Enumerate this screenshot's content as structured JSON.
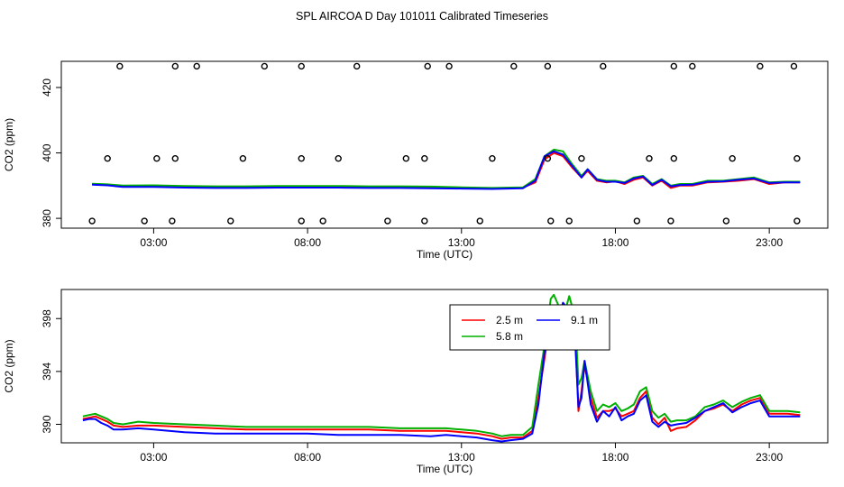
{
  "title": "SPL AIRCOA D  Day 101011  Calibrated Timeseries",
  "chart_data": [
    {
      "type": "line",
      "name": "top-panel",
      "xlabel": "Time (UTC)",
      "ylabel": "CO2 (ppm)",
      "xlim": [
        0,
        24.9
      ],
      "ylim": [
        377,
        428
      ],
      "xticks": [
        3,
        8,
        13,
        18,
        23
      ],
      "xtick_labels": [
        "03:00",
        "08:00",
        "13:00",
        "18:00",
        "23:00"
      ],
      "yticks": [
        380,
        400,
        420
      ],
      "ytick_labels": [
        "380",
        "400",
        "420"
      ],
      "x": [
        1.0,
        1.5,
        2.0,
        3.0,
        4.0,
        5.0,
        6.0,
        7.0,
        8.0,
        9.0,
        10.0,
        11.0,
        12.0,
        13.0,
        14.0,
        15.0,
        15.4,
        15.7,
        16.0,
        16.3,
        16.6,
        16.9,
        17.1,
        17.4,
        17.7,
        18.0,
        18.3,
        18.6,
        18.9,
        19.2,
        19.5,
        19.8,
        20.1,
        20.5,
        21.0,
        21.5,
        22.0,
        22.5,
        23.0,
        23.5,
        24.0
      ],
      "series": [
        {
          "name": "2.5 m",
          "color": "#ff0000",
          "values": [
            390.5,
            390.2,
            389.8,
            389.8,
            389.6,
            389.5,
            389.5,
            389.6,
            389.6,
            389.6,
            389.5,
            389.5,
            389.4,
            389.3,
            389.2,
            389.4,
            391,
            398,
            400,
            399,
            395.5,
            392.5,
            394.5,
            391.5,
            391,
            391.3,
            390.5,
            391.8,
            392.5,
            390,
            391.5,
            389.3,
            390,
            390,
            391,
            391.2,
            391.5,
            392,
            390.5,
            391,
            391
          ]
        },
        {
          "name": "5.8 m",
          "color": "#00b000",
          "values": [
            390.6,
            390.4,
            390.0,
            390.1,
            389.9,
            389.8,
            389.8,
            389.9,
            389.9,
            389.9,
            389.8,
            389.8,
            389.7,
            389.5,
            389.3,
            389.5,
            392,
            399,
            401,
            400.5,
            396.5,
            393,
            395,
            392,
            391.5,
            391.5,
            391,
            392.5,
            393,
            390.5,
            392,
            390,
            390.5,
            390.5,
            391.5,
            391.5,
            392,
            392.5,
            391,
            391.2,
            391.2
          ]
        },
        {
          "name": "9.1 m",
          "color": "#0000ff",
          "values": [
            390.3,
            390.1,
            389.6,
            389.6,
            389.4,
            389.3,
            389.3,
            389.4,
            389.4,
            389.4,
            389.3,
            389.3,
            389.2,
            389.1,
            389.0,
            389.2,
            391.5,
            399,
            400.5,
            399.5,
            396,
            392.5,
            395,
            391.8,
            391.2,
            391.2,
            390.8,
            392.2,
            392.8,
            390.2,
            391.8,
            389.8,
            390.2,
            390.3,
            391.2,
            391.3,
            391.8,
            392.2,
            390.8,
            391,
            391
          ]
        }
      ],
      "markers": {
        "shape": "open-circle",
        "rows": [
          {
            "y": 426.5,
            "x": [
              1.9,
              3.7,
              4.4,
              6.6,
              7.8,
              9.6,
              11.9,
              12.6,
              14.7,
              15.8,
              17.6,
              19.9,
              20.5,
              22.7,
              23.8
            ]
          },
          {
            "y": 398.3,
            "x": [
              1.5,
              3.1,
              3.7,
              5.9,
              7.8,
              9.0,
              11.2,
              11.8,
              14.0,
              15.8,
              16.9,
              19.1,
              19.9,
              21.8,
              23.9
            ]
          },
          {
            "y": 379.2,
            "x": [
              1.0,
              2.7,
              3.6,
              5.5,
              7.8,
              8.5,
              10.6,
              11.8,
              13.6,
              15.9,
              16.5,
              18.7,
              19.8,
              21.6,
              23.9
            ]
          }
        ]
      }
    },
    {
      "type": "line",
      "name": "bottom-panel",
      "xlabel": "Time (UTC)",
      "ylabel": "CO2 (ppm)",
      "xlim": [
        0,
        24.9
      ],
      "ylim": [
        388.6,
        400.2
      ],
      "xticks": [
        3,
        8,
        13,
        18,
        23
      ],
      "xtick_labels": [
        "03:00",
        "08:00",
        "13:00",
        "18:00",
        "23:00"
      ],
      "yticks": [
        390,
        394,
        398
      ],
      "ytick_labels": [
        "390",
        "394",
        "398"
      ],
      "x": [
        0.7,
        0.9,
        1.1,
        1.3,
        1.5,
        1.7,
        2.0,
        2.5,
        3.0,
        4.0,
        5.0,
        6.0,
        7.0,
        8.0,
        9.0,
        10.0,
        11.0,
        12.0,
        12.5,
        13.0,
        13.5,
        14.0,
        14.3,
        14.6,
        15.0,
        15.3,
        15.5,
        15.7,
        15.9,
        16.0,
        16.15,
        16.3,
        16.5,
        16.7,
        16.8,
        16.9,
        17.0,
        17.2,
        17.4,
        17.6,
        17.8,
        18.0,
        18.2,
        18.4,
        18.6,
        18.8,
        19.0,
        19.2,
        19.4,
        19.6,
        19.8,
        20.0,
        20.3,
        20.6,
        20.9,
        21.2,
        21.5,
        21.8,
        22.1,
        22.4,
        22.7,
        23.0,
        23.3,
        23.6,
        24.0
      ],
      "series": [
        {
          "name": "2.5 m",
          "color": "#ff0000",
          "values": [
            390.4,
            390.5,
            390.6,
            390.4,
            390.2,
            389.9,
            389.8,
            389.9,
            389.9,
            389.8,
            389.7,
            389.6,
            389.6,
            389.6,
            389.6,
            389.6,
            389.5,
            389.5,
            389.5,
            389.4,
            389.3,
            389.1,
            388.9,
            389.0,
            389.0,
            389.5,
            392.0,
            395.0,
            398.0,
            398.3,
            398.2,
            398.0,
            397.5,
            396.5,
            391.0,
            392.5,
            394.5,
            392.0,
            390.5,
            391.0,
            391.0,
            391.2,
            390.6,
            390.8,
            391.0,
            392.0,
            392.5,
            390.5,
            390.0,
            390.5,
            389.5,
            389.7,
            389.8,
            390.3,
            391.0,
            391.2,
            391.5,
            391.0,
            391.5,
            391.8,
            392.0,
            390.8,
            390.8,
            390.8,
            390.7
          ]
        },
        {
          "name": "5.8 m",
          "color": "#00b000",
          "values": [
            390.6,
            390.7,
            390.8,
            390.6,
            390.4,
            390.1,
            390.0,
            390.2,
            390.1,
            390.0,
            389.9,
            389.8,
            389.8,
            389.8,
            389.8,
            389.8,
            389.7,
            389.7,
            389.7,
            389.6,
            389.5,
            389.3,
            389.1,
            389.2,
            389.2,
            389.8,
            393.0,
            396.0,
            399.5,
            399.8,
            399.0,
            398.0,
            399.7,
            398.0,
            393.0,
            393.5,
            394.8,
            392.5,
            391.0,
            391.5,
            391.3,
            391.6,
            391.0,
            391.2,
            391.5,
            392.5,
            392.8,
            391.0,
            390.5,
            390.8,
            390.2,
            390.3,
            390.3,
            390.6,
            391.3,
            391.5,
            391.8,
            391.3,
            391.7,
            392.0,
            392.2,
            391.0,
            391.0,
            391.0,
            390.9
          ]
        },
        {
          "name": "9.1 m",
          "color": "#0000ff",
          "values": [
            390.3,
            390.4,
            390.4,
            390.1,
            389.9,
            389.6,
            389.6,
            389.7,
            389.6,
            389.4,
            389.3,
            389.3,
            389.3,
            389.3,
            389.2,
            389.2,
            389.2,
            389.1,
            389.2,
            389.1,
            389.0,
            388.8,
            388.7,
            388.8,
            388.9,
            389.3,
            391.5,
            395.5,
            398.8,
            399.0,
            398.0,
            399.2,
            398.6,
            396.0,
            391.3,
            392.0,
            394.8,
            391.5,
            390.2,
            391.0,
            390.6,
            391.3,
            390.3,
            390.6,
            390.8,
            391.8,
            392.2,
            390.2,
            389.8,
            390.2,
            389.9,
            390.0,
            390.1,
            390.5,
            391.0,
            391.3,
            391.6,
            390.9,
            391.3,
            391.6,
            391.8,
            390.6,
            390.6,
            390.6,
            390.6
          ]
        }
      ],
      "legend": {
        "placement": "top-center",
        "entries": [
          {
            "label": "2.5 m",
            "color": "#ff0000"
          },
          {
            "label": "9.1 m",
            "color": "#0000ff"
          },
          {
            "label": "5.8 m",
            "color": "#00b000"
          }
        ]
      }
    }
  ]
}
